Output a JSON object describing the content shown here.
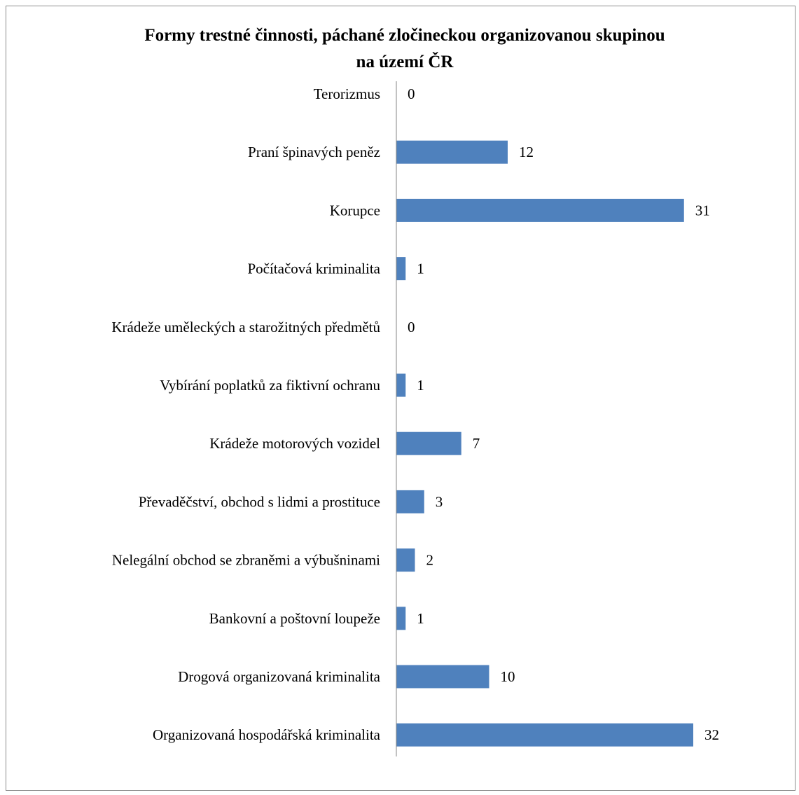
{
  "chart_data": {
    "type": "bar",
    "orientation": "horizontal",
    "title": "Formy trestné činnosti, páchané zločineckou organizovanou skupinou na území ČR",
    "title_lines": [
      "Formy trestné činnosti, páchané zločineckou organizovanou skupinou",
      "na území ČR"
    ],
    "categories": [
      "Terorizmus",
      "Praní špinavých peněz",
      "Korupce",
      "Počítačová kriminalita",
      "Krádeže uměleckých a starožitných předmětů",
      "Vybírání poplatků za fiktivní ochranu",
      "Krádeže motorových vozidel",
      "Převaděčství, obchod s lidmi a prostituce",
      "Nelegální obchod se zbraněmi a výbušninami",
      "Bankovní a poštovní loupeže",
      "Drogová organizovaná kriminalita",
      "Organizovaná hospodářská kriminalita"
    ],
    "values": [
      0,
      12,
      31,
      1,
      0,
      1,
      7,
      3,
      2,
      1,
      10,
      32
    ],
    "xlim": [
      0,
      35
    ],
    "grid": false,
    "legend": "none",
    "data_labels": true,
    "bar_color": "#4f81bd",
    "axis_color": "#868686"
  }
}
